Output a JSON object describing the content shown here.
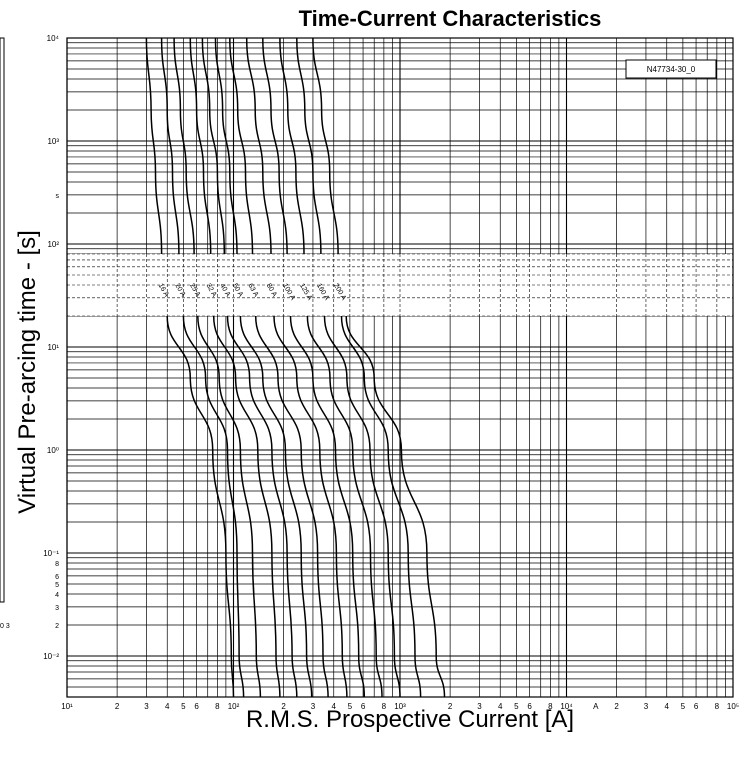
{
  "chart_data": {
    "type": "line",
    "title": "Time-Current Characteristics",
    "xlabel": "R.M.S. Prospective Current [A]",
    "ylabel": "Virtual Pre-arcing time - [s]",
    "x_scale": "log",
    "y_scale": "log",
    "xlim": [
      10,
      100000
    ],
    "ylim": [
      0.004,
      10000
    ],
    "grid": true,
    "reference_label": "N47734-30_0",
    "x_tick_labels": [
      {
        "v": 10,
        "t": "10¹"
      },
      {
        "v": 20,
        "t": "2"
      },
      {
        "v": 30,
        "t": "3"
      },
      {
        "v": 40,
        "t": "4"
      },
      {
        "v": 50,
        "t": "5"
      },
      {
        "v": 60,
        "t": "6"
      },
      {
        "v": 80,
        "t": "8"
      },
      {
        "v": 100,
        "t": "10²"
      },
      {
        "v": 200,
        "t": "2"
      },
      {
        "v": 300,
        "t": "3"
      },
      {
        "v": 400,
        "t": "4"
      },
      {
        "v": 500,
        "t": "5"
      },
      {
        "v": 600,
        "t": "6"
      },
      {
        "v": 800,
        "t": "8"
      },
      {
        "v": 1000,
        "t": "10³"
      },
      {
        "v": 2000,
        "t": "2"
      },
      {
        "v": 3000,
        "t": "3"
      },
      {
        "v": 4000,
        "t": "4"
      },
      {
        "v": 5000,
        "t": "5"
      },
      {
        "v": 6000,
        "t": "6"
      },
      {
        "v": 8000,
        "t": "8"
      },
      {
        "v": 10000,
        "t": "10⁴"
      },
      {
        "v": 15000,
        "t": "A"
      },
      {
        "v": 20000,
        "t": "2"
      },
      {
        "v": 30000,
        "t": "3"
      },
      {
        "v": 40000,
        "t": "4"
      },
      {
        "v": 50000,
        "t": "5"
      },
      {
        "v": 60000,
        "t": "6"
      },
      {
        "v": 80000,
        "t": "8"
      },
      {
        "v": 100000,
        "t": "10⁵"
      }
    ],
    "y_tick_labels": [
      {
        "v": 10000,
        "t": "10⁴"
      },
      {
        "v": 1000,
        "t": "10³"
      },
      {
        "v": 300,
        "t": "s"
      },
      {
        "v": 100,
        "t": "10²"
      },
      {
        "v": 10,
        "t": "10¹"
      },
      {
        "v": 1,
        "t": "10⁰"
      },
      {
        "v": 0.1,
        "t": "10⁻¹"
      },
      {
        "v": 0.08,
        "t": "8"
      },
      {
        "v": 0.06,
        "t": "6"
      },
      {
        "v": 0.05,
        "t": "5"
      },
      {
        "v": 0.04,
        "t": "4"
      },
      {
        "v": 0.03,
        "t": "3"
      },
      {
        "v": 0.02,
        "t": "2"
      },
      {
        "v": 0.01,
        "t": "10⁻²"
      }
    ],
    "stray_labels": {
      "left_edge": "0 3"
    },
    "series": [
      {
        "name": "16 A",
        "upper": [
          [
            30,
            10000
          ],
          [
            32,
            2000
          ],
          [
            34,
            500
          ],
          [
            37,
            80
          ]
        ],
        "lower": [
          [
            40,
            20
          ],
          [
            55,
            5
          ],
          [
            75,
            1
          ],
          [
            90,
            0.1
          ],
          [
            97,
            0.01
          ],
          [
            100,
            0.004
          ]
        ]
      },
      {
        "name": "20 A",
        "upper": [
          [
            37,
            10000
          ],
          [
            40,
            2000
          ],
          [
            43,
            500
          ],
          [
            47,
            80
          ]
        ],
        "lower": [
          [
            50,
            20
          ],
          [
            68,
            5
          ],
          [
            92,
            1
          ],
          [
            105,
            0.1
          ],
          [
            108,
            0.01
          ],
          [
            115,
            0.004
          ]
        ]
      },
      {
        "name": "25 A",
        "upper": [
          [
            44,
            10000
          ],
          [
            48,
            2000
          ],
          [
            52,
            500
          ],
          [
            58,
            80
          ]
        ],
        "lower": [
          [
            61,
            20
          ],
          [
            82,
            5
          ],
          [
            110,
            1
          ],
          [
            130,
            0.1
          ],
          [
            137,
            0.01
          ],
          [
            145,
            0.004
          ]
        ]
      },
      {
        "name": "32 A",
        "upper": [
          [
            55,
            10000
          ],
          [
            60,
            2000
          ],
          [
            66,
            500
          ],
          [
            73,
            80
          ]
        ],
        "lower": [
          [
            76,
            20
          ],
          [
            103,
            5
          ],
          [
            140,
            1
          ],
          [
            170,
            0.1
          ],
          [
            180,
            0.01
          ],
          [
            190,
            0.004
          ]
        ]
      },
      {
        "name": "40 A",
        "upper": [
          [
            65,
            10000
          ],
          [
            72,
            2000
          ],
          [
            80,
            500
          ],
          [
            88,
            80
          ]
        ],
        "lower": [
          [
            92,
            20
          ],
          [
            125,
            5
          ],
          [
            170,
            1
          ],
          [
            210,
            0.1
          ],
          [
            225,
            0.01
          ],
          [
            240,
            0.004
          ]
        ]
      },
      {
        "name": "50 A",
        "upper": [
          [
            78,
            10000
          ],
          [
            86,
            2000
          ],
          [
            95,
            500
          ],
          [
            105,
            80
          ]
        ],
        "lower": [
          [
            110,
            20
          ],
          [
            150,
            5
          ],
          [
            205,
            1
          ],
          [
            255,
            0.1
          ],
          [
            275,
            0.01
          ],
          [
            295,
            0.004
          ]
        ]
      },
      {
        "name": "63 A",
        "upper": [
          [
            95,
            10000
          ],
          [
            106,
            2000
          ],
          [
            118,
            500
          ],
          [
            130,
            80
          ]
        ],
        "lower": [
          [
            136,
            20
          ],
          [
            185,
            5
          ],
          [
            255,
            1
          ],
          [
            320,
            0.1
          ],
          [
            345,
            0.01
          ],
          [
            370,
            0.004
          ]
        ]
      },
      {
        "name": "80 A",
        "upper": [
          [
            120,
            10000
          ],
          [
            135,
            2000
          ],
          [
            150,
            500
          ],
          [
            168,
            80
          ]
        ],
        "lower": [
          [
            175,
            20
          ],
          [
            240,
            5
          ],
          [
            330,
            1
          ],
          [
            415,
            0.1
          ],
          [
            450,
            0.01
          ],
          [
            480,
            0.004
          ]
        ]
      },
      {
        "name": "100 A",
        "upper": [
          [
            150,
            10000
          ],
          [
            168,
            2000
          ],
          [
            188,
            500
          ],
          [
            210,
            80
          ]
        ],
        "lower": [
          [
            220,
            20
          ],
          [
            300,
            5
          ],
          [
            410,
            1
          ],
          [
            520,
            0.1
          ],
          [
            565,
            0.01
          ],
          [
            610,
            0.004
          ]
        ]
      },
      {
        "name": "125 A",
        "upper": [
          [
            190,
            10000
          ],
          [
            212,
            2000
          ],
          [
            237,
            500
          ],
          [
            265,
            80
          ]
        ],
        "lower": [
          [
            278,
            20
          ],
          [
            380,
            5
          ],
          [
            520,
            1
          ],
          [
            665,
            0.1
          ],
          [
            720,
            0.01
          ],
          [
            780,
            0.004
          ]
        ]
      },
      {
        "name": "160 A",
        "upper": [
          [
            240,
            10000
          ],
          [
            268,
            2000
          ],
          [
            300,
            500
          ],
          [
            335,
            80
          ]
        ],
        "lower": [
          [
            352,
            20
          ],
          [
            480,
            5
          ],
          [
            660,
            1
          ],
          [
            850,
            0.1
          ],
          [
            925,
            0.01
          ],
          [
            1000,
            0.004
          ]
        ]
      },
      {
        "name": "200 A",
        "upper": [
          [
            300,
            10000
          ],
          [
            338,
            2000
          ],
          [
            378,
            500
          ],
          [
            425,
            80
          ]
        ],
        "lower": [
          [
            445,
            20
          ],
          [
            610,
            5
          ],
          [
            850,
            1
          ],
          [
            1120,
            0.1
          ],
          [
            1230,
            0.01
          ],
          [
            1330,
            0.004
          ]
        ]
      },
      {
        "name": "",
        "upper": [],
        "lower": [
          [
            475,
            20
          ],
          [
            700,
            5
          ],
          [
            1020,
            1
          ],
          [
            1450,
            0.1
          ],
          [
            1650,
            0.01
          ],
          [
            1850,
            0.004
          ]
        ]
      }
    ]
  }
}
